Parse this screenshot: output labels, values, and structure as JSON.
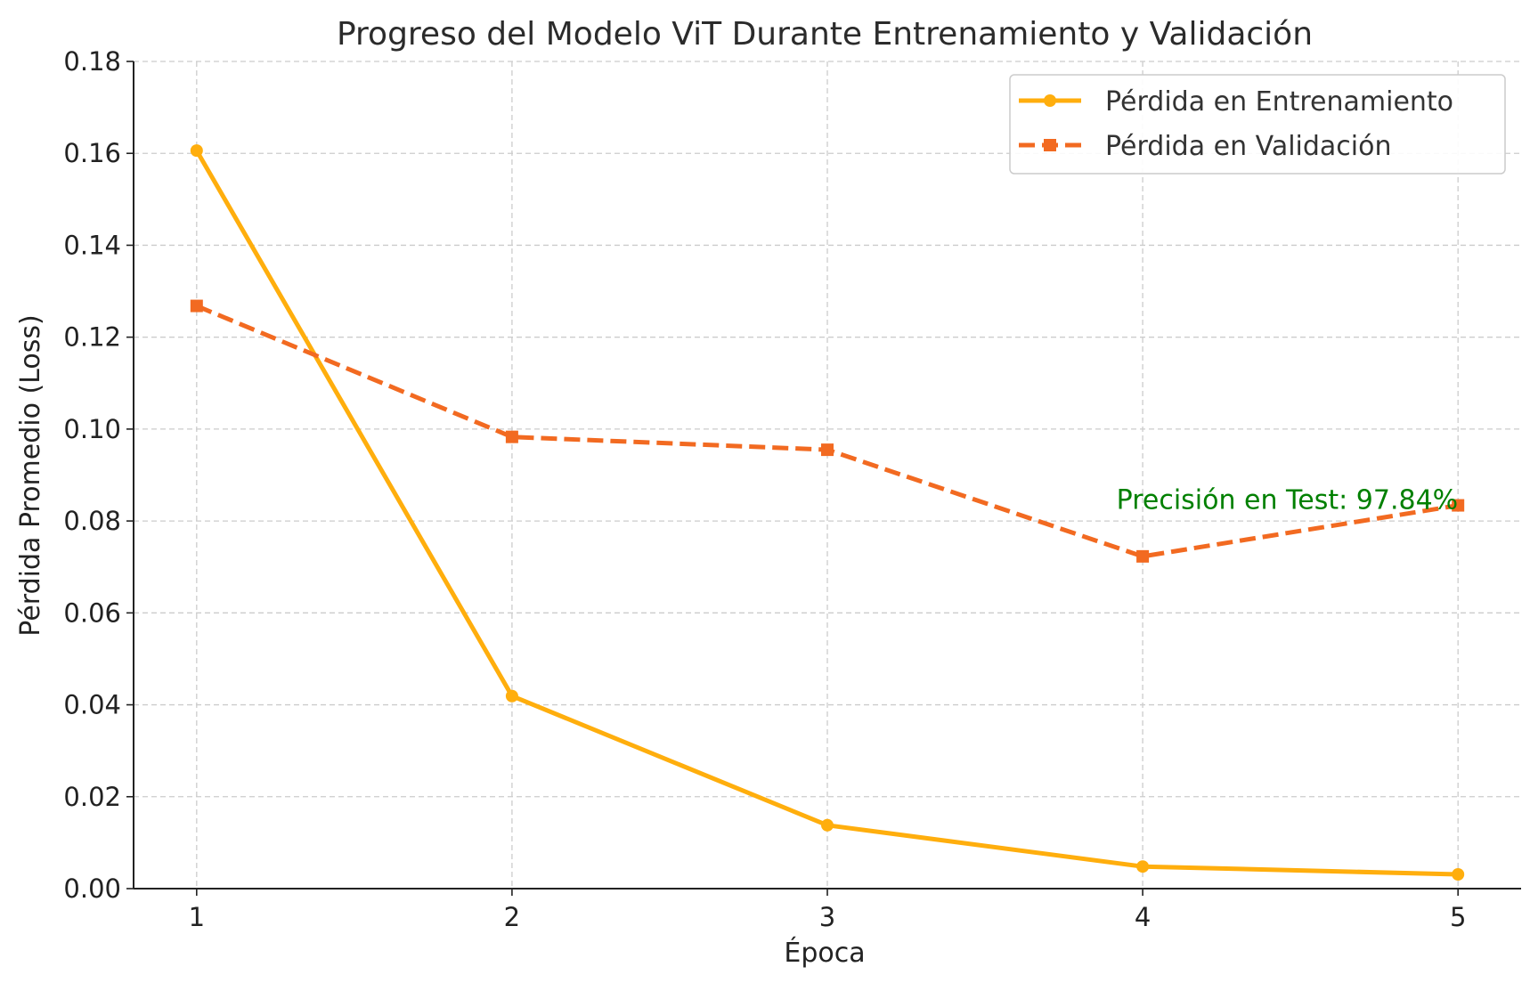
{
  "chart_data": {
    "type": "line",
    "title": "Progreso del Modelo ViT Durante Entrenamiento y Validación",
    "xlabel": "Época",
    "ylabel": "Pérdida Promedio (Loss)",
    "x": [
      1,
      2,
      3,
      4,
      5
    ],
    "x_tick_labels": [
      "1",
      "2",
      "3",
      "4",
      "5"
    ],
    "xlim": [
      0.8,
      5.2
    ],
    "ylim": [
      0,
      0.18
    ],
    "y_ticks": [
      0,
      0.02,
      0.04,
      0.06,
      0.08,
      0.1,
      0.12,
      0.14,
      0.16,
      0.18
    ],
    "y_tick_labels": [
      "0.00",
      "0.02",
      "0.04",
      "0.06",
      "0.08",
      "0.10",
      "0.12",
      "0.14",
      "0.16",
      "0.18"
    ],
    "grid": true,
    "legend_position": "top-right",
    "series": [
      {
        "name": "Pérdida en Entrenamiento",
        "values": [
          0.1606,
          0.0419,
          0.0138,
          0.0048,
          0.0031
        ],
        "color": "#FFAE0D",
        "line_style": "solid",
        "marker": "circle"
      },
      {
        "name": "Pérdida en Validación",
        "values": [
          0.1268,
          0.0983,
          0.0955,
          0.0723,
          0.0834
        ],
        "color": "#F26A21",
        "line_style": "dashed",
        "marker": "square"
      }
    ],
    "annotations": [
      {
        "text": "Precisión en Test: 97.84%",
        "x": 5,
        "y": 0.083,
        "color": "#008000",
        "anchor": "end"
      }
    ]
  }
}
